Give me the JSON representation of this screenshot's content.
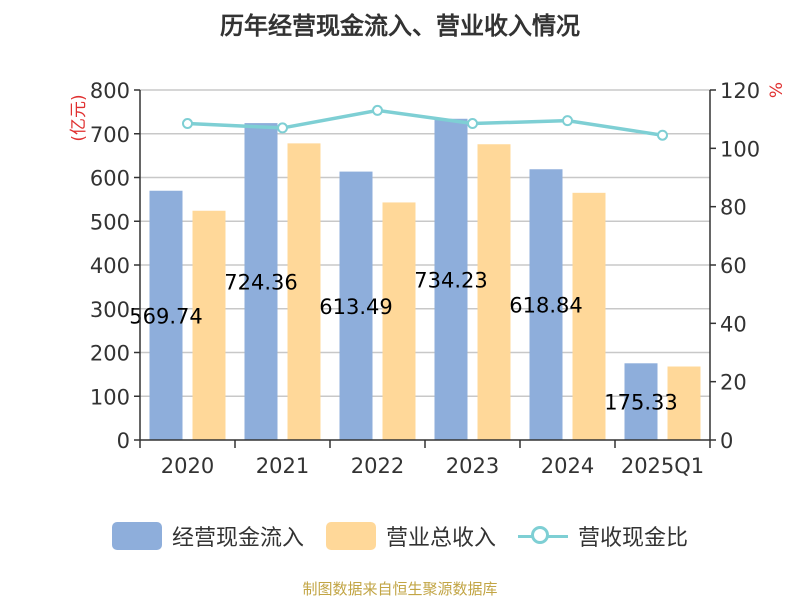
{
  "title": "历年经营现金流入、营业收入情况",
  "source": "制图数据来自恒生聚源数据库",
  "colors": {
    "cash_inflow": "#8eaedb",
    "revenue": "#ffd899",
    "ratio": "#7ecfd4",
    "axis_label_unit": "#e03030"
  },
  "chart_data": {
    "type": "bar",
    "categories": [
      "2020",
      "2021",
      "2022",
      "2023",
      "2024",
      "2025Q1"
    ],
    "series": [
      {
        "name": "经营现金流入",
        "type": "bar",
        "axis": "left",
        "values": [
          569.74,
          724.36,
          613.49,
          734.23,
          618.84,
          175.33
        ],
        "labels": [
          "569.74",
          "724.36",
          "613.49",
          "734.23",
          "618.84",
          "175.33"
        ]
      },
      {
        "name": "营业总收入",
        "type": "bar",
        "axis": "left",
        "values": [
          524,
          678,
          543,
          676,
          565,
          168
        ]
      },
      {
        "name": "营收现金比",
        "type": "line",
        "axis": "right",
        "values": [
          108.5,
          107,
          113,
          108.5,
          109.5,
          104.5
        ]
      }
    ],
    "ylabel": "(亿元)",
    "y2label": "%",
    "ylim": [
      0,
      800
    ],
    "y2lim": [
      0,
      120
    ],
    "yticks": [
      0,
      100,
      200,
      300,
      400,
      500,
      600,
      700,
      800
    ],
    "y2ticks": [
      0,
      20,
      40,
      60,
      80,
      100,
      120
    ],
    "grid": true,
    "legend_position": "bottom"
  }
}
